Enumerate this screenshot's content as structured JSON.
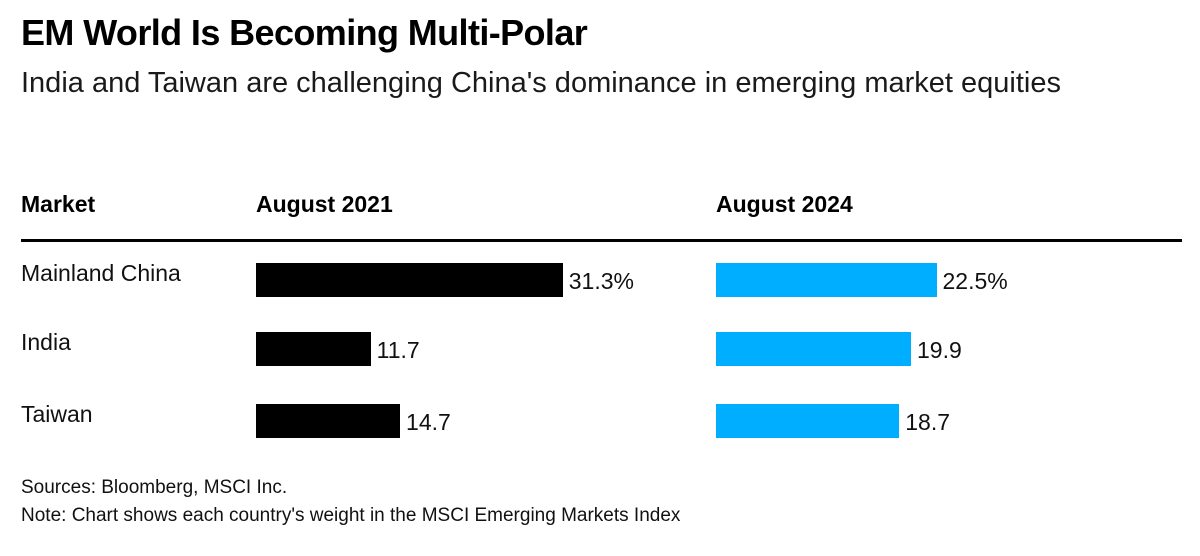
{
  "chart_data": {
    "type": "bar",
    "title": "EM World Is Becoming Multi-Polar",
    "subtitle": "India and Taiwan are challenging China's dominance in emerging market equities",
    "row_header": "Market",
    "categories": [
      "Mainland China",
      "India",
      "Taiwan"
    ],
    "series": [
      {
        "name": "August 2021",
        "values": [
          31.3,
          11.7,
          14.7
        ],
        "labels": [
          "31.3%",
          "11.7",
          "14.7"
        ],
        "color": "#000000"
      },
      {
        "name": "August 2024",
        "values": [
          22.5,
          19.9,
          18.7
        ],
        "labels": [
          "22.5%",
          "19.9",
          "18.7"
        ],
        "color": "#00aeff"
      }
    ],
    "unit": "%",
    "source": "Sources: Bloomberg, MSCI Inc.",
    "note": "Note: Chart shows each country's weight in the MSCI Emerging Markets Index"
  }
}
